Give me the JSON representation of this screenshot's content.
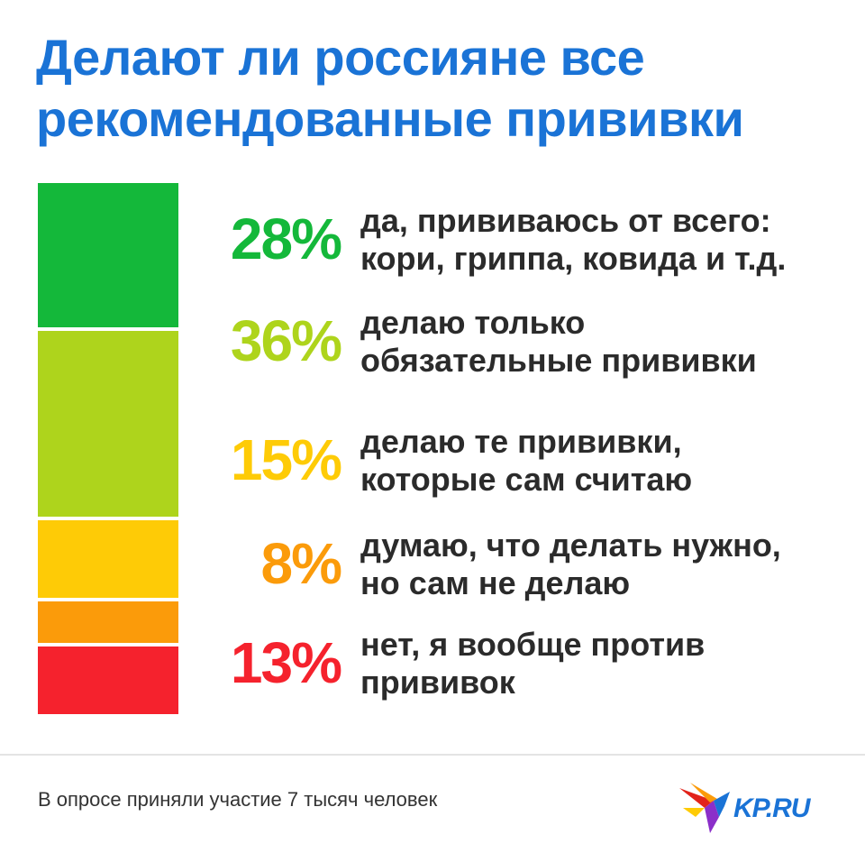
{
  "title": {
    "line1": "Делают ли россияне все",
    "line2": "рекомендованные прививки"
  },
  "chart_data": {
    "type": "bar",
    "stacked": true,
    "orientation": "vertical",
    "categories": [
      "да, прививаюсь от всего: кори, гриппа, ковида и т.д.",
      "делаю только обязательные прививки",
      "делаю те прививки, которые сам считаю",
      "думаю, что делать нужно, но сам не делаю",
      "нет, я вообще против прививок"
    ],
    "values": [
      28,
      36,
      15,
      8,
      13
    ],
    "value_labels": [
      "28%",
      "36%",
      "15%",
      "8%",
      "13%"
    ],
    "label_lines": [
      [
        "да, прививаюсь от всего:",
        "кори, гриппа, ковида и т.д."
      ],
      [
        "делаю только",
        "обязательные прививки"
      ],
      [
        "делаю те прививки,",
        "которые сам считаю"
      ],
      [
        "думаю, что делать нужно,",
        "но сам не делаю"
      ],
      [
        "нет, я вообще против",
        "прививок"
      ]
    ],
    "colors": [
      "#14b83a",
      "#aed41c",
      "#fecb06",
      "#fb9b0a",
      "#f5222d"
    ],
    "unit": "%"
  },
  "footer": {
    "note": "В опросе приняли участие 7 тысяч человек",
    "logo_text": "KP.RU"
  },
  "brand": {
    "accent": "#1a73d6"
  }
}
